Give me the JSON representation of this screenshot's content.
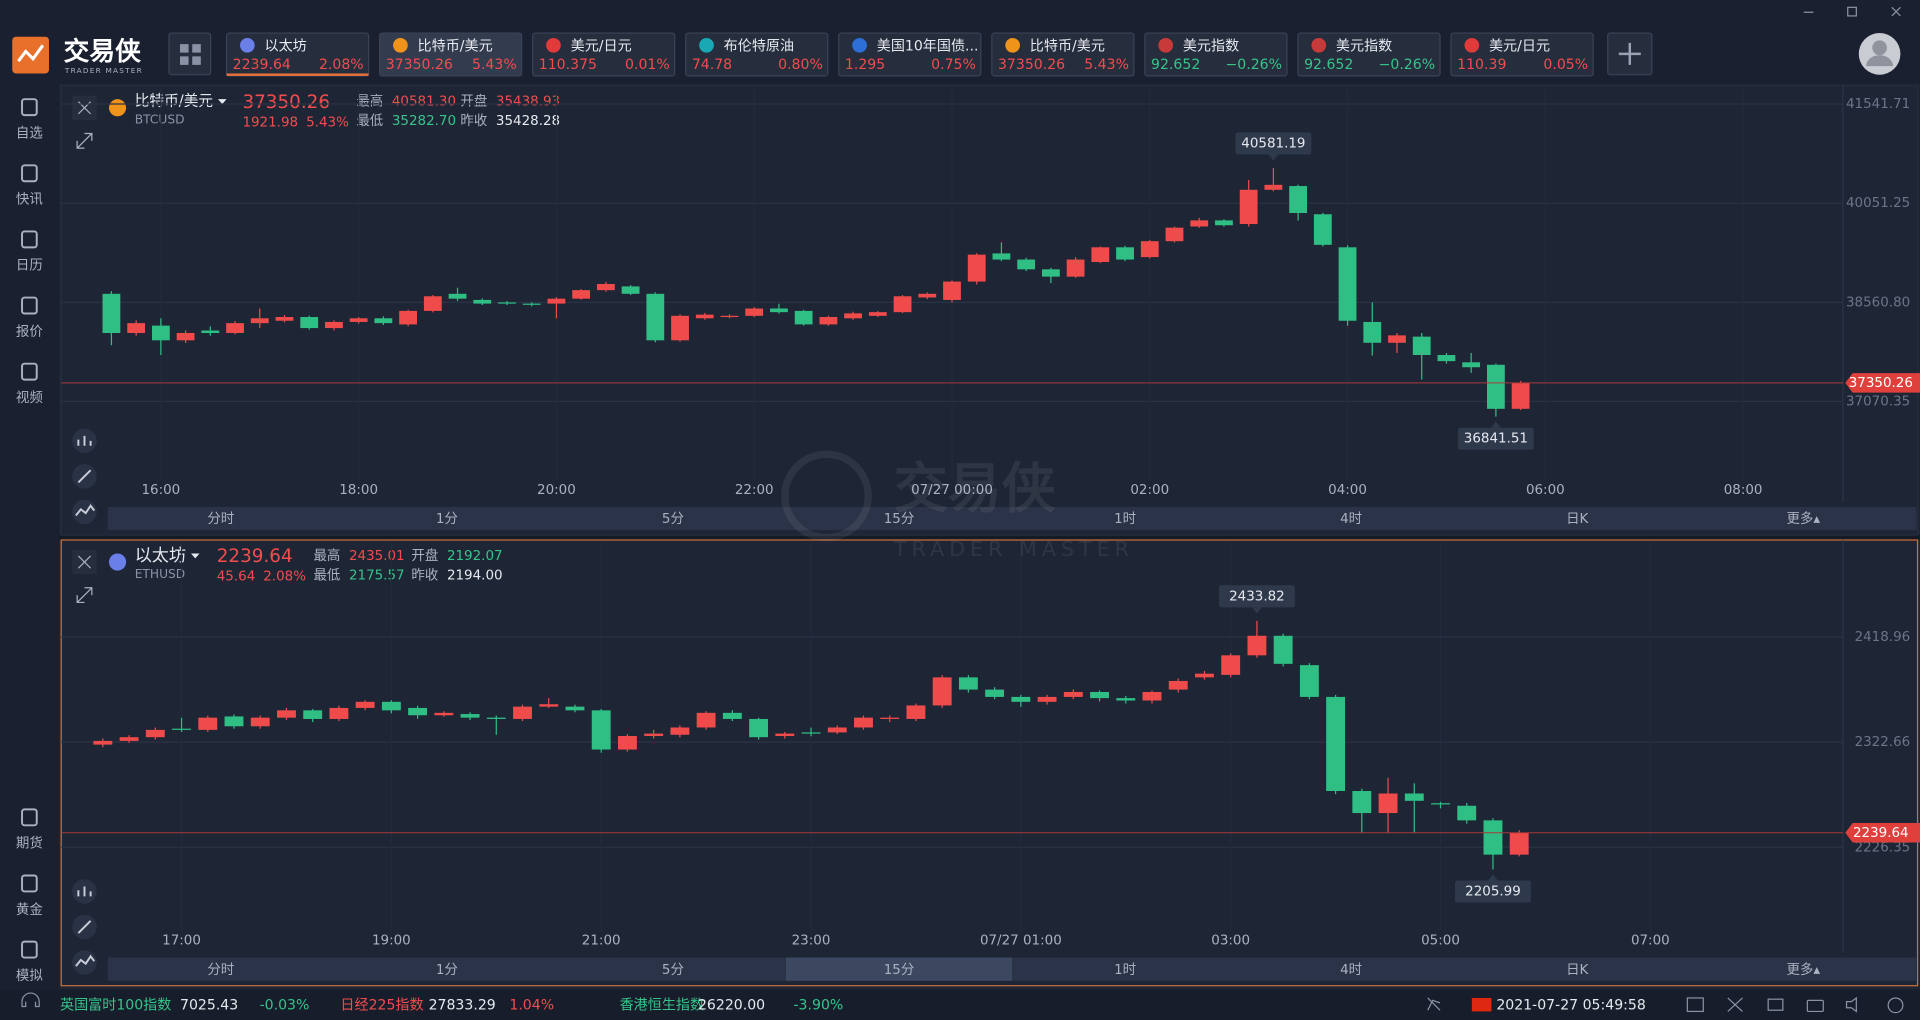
{
  "header": {
    "logo": "交易侠",
    "logo_sub": "TRADER MASTER",
    "active_ticker": 0,
    "tickers": [
      {
        "name": "以太坊",
        "price": "2239.64",
        "change": "2.08%",
        "color": "#f24d4d",
        "icon_color": "#6a7fe8"
      },
      {
        "name": "比特币/美元",
        "price": "37350.26",
        "change": "5.43%",
        "color": "#f24d4d",
        "icon_color": "#f0931a"
      },
      {
        "name": "美元/日元",
        "price": "110.375",
        "change": "0.01%",
        "color": "#f24d4d",
        "icon_color": "#e03a3a"
      },
      {
        "name": "布伦特原油",
        "price": "74.78",
        "change": "0.80%",
        "color": "#f24d4d",
        "icon_color": "#19a9b5"
      },
      {
        "name": "美国10年国债...",
        "price": "1.295",
        "change": "0.75%",
        "color": "#f24d4d",
        "icon_color": "#2d6fd6"
      },
      {
        "name": "比特币/美元",
        "price": "37350.26",
        "change": "5.43%",
        "color": "#f24d4d",
        "icon_color": "#f0931a"
      },
      {
        "name": "美元指数",
        "price": "92.652",
        "change": "−0.26%",
        "color": "#36c48b",
        "icon_color": "#c83a3a"
      },
      {
        "name": "美元指数",
        "price": "92.652",
        "change": "−0.26%",
        "color": "#36c48b",
        "icon_color": "#c83a3a"
      },
      {
        "name": "美元/日元",
        "price": "110.39",
        "change": "0.05%",
        "color": "#f24d4d",
        "icon_color": "#e03a3a"
      }
    ]
  },
  "sidebar": {
    "top": [
      "自选",
      "快讯",
      "日历",
      "报价",
      "视频"
    ],
    "bottom": [
      "期货",
      "黄金",
      "模拟"
    ]
  },
  "watermark": {
    "title": "交易侠",
    "subtitle": "TRADER MASTER"
  },
  "panels": [
    {
      "name": "比特币/美元",
      "code": "BTCUSD",
      "price": "37350.26",
      "change": "1921.98",
      "change_pct": "5.43%",
      "price_color": "#f24d4d",
      "selected": false,
      "stats": [
        {
          "label": "最高",
          "value": "40581.30",
          "color": "#f24d4d"
        },
        {
          "label": "开盘",
          "value": "35438.93",
          "color": "#f24d4d"
        },
        {
          "label": "最低",
          "value": "35282.70",
          "color": "#36c48b"
        },
        {
          "label": "昨收",
          "value": "35428.28",
          "color": "#e6e9ef"
        }
      ],
      "timeframes": [
        "分时",
        "1分",
        "5分",
        "15分",
        "1时",
        "4时",
        "日K",
        "更多▴"
      ],
      "active_timeframe": null,
      "chart": {
        "type": "candlestick",
        "up_color": "#f04b4b",
        "down_color": "#2fbf85",
        "grid": true,
        "ylim": [
          35890,
          41670
        ],
        "yticks": [
          {
            "value": 41541.71,
            "label": "41541.71"
          },
          {
            "value": 40051.25,
            "label": "40051.25"
          },
          {
            "value": 38560.8,
            "label": "38560.80"
          },
          {
            "value": 37070.35,
            "label": "37070.35"
          }
        ],
        "x_labels": [
          "16:00",
          "18:00",
          "20:00",
          "22:00",
          "07/27 00:00",
          "02:00",
          "04:00",
          "06:00",
          "08:00"
        ],
        "last_price_tag": "37350.26",
        "high_marker": "40581.19",
        "low_marker": "36841.51",
        "candles": [
          {
            "o": 38689,
            "h": 38730,
            "l": 37916,
            "c": 38100
          },
          {
            "o": 38100,
            "h": 38290,
            "l": 38060,
            "c": 38248
          },
          {
            "o": 38211,
            "h": 38321,
            "l": 37769,
            "c": 37990
          },
          {
            "o": 37990,
            "h": 38140,
            "l": 37950,
            "c": 38100
          },
          {
            "o": 38137,
            "h": 38200,
            "l": 38060,
            "c": 38100
          },
          {
            "o": 38100,
            "h": 38280,
            "l": 38080,
            "c": 38248
          },
          {
            "o": 38248,
            "h": 38468,
            "l": 38174,
            "c": 38321
          },
          {
            "o": 38284,
            "h": 38370,
            "l": 38260,
            "c": 38340
          },
          {
            "o": 38340,
            "h": 38360,
            "l": 38150,
            "c": 38174
          },
          {
            "o": 38174,
            "h": 38290,
            "l": 38140,
            "c": 38266
          },
          {
            "o": 38266,
            "h": 38340,
            "l": 38240,
            "c": 38321
          },
          {
            "o": 38321,
            "h": 38350,
            "l": 38220,
            "c": 38248
          },
          {
            "o": 38229,
            "h": 38450,
            "l": 38200,
            "c": 38432
          },
          {
            "o": 38432,
            "h": 38670,
            "l": 38410,
            "c": 38652
          },
          {
            "o": 38689,
            "h": 38781,
            "l": 38580,
            "c": 38616
          },
          {
            "o": 38597,
            "h": 38620,
            "l": 38520,
            "c": 38542
          },
          {
            "o": 38560,
            "h": 38580,
            "l": 38520,
            "c": 38542
          },
          {
            "o": 38542,
            "h": 38560,
            "l": 38500,
            "c": 38524
          },
          {
            "o": 38542,
            "h": 38640,
            "l": 38321,
            "c": 38616
          },
          {
            "o": 38616,
            "h": 38760,
            "l": 38600,
            "c": 38744
          },
          {
            "o": 38744,
            "h": 38870,
            "l": 38720,
            "c": 38836
          },
          {
            "o": 38800,
            "h": 38820,
            "l": 38670,
            "c": 38689
          },
          {
            "o": 38689,
            "h": 38710,
            "l": 37960,
            "c": 37990
          },
          {
            "o": 37990,
            "h": 38380,
            "l": 37970,
            "c": 38358
          },
          {
            "o": 38321,
            "h": 38400,
            "l": 38300,
            "c": 38376
          },
          {
            "o": 38340,
            "h": 38380,
            "l": 38320,
            "c": 38358
          },
          {
            "o": 38358,
            "h": 38490,
            "l": 38340,
            "c": 38468
          },
          {
            "o": 38468,
            "h": 38540,
            "l": 38390,
            "c": 38413
          },
          {
            "o": 38432,
            "h": 38450,
            "l": 38210,
            "c": 38229
          },
          {
            "o": 38229,
            "h": 38360,
            "l": 38210,
            "c": 38340
          },
          {
            "o": 38321,
            "h": 38420,
            "l": 38300,
            "c": 38395
          },
          {
            "o": 38358,
            "h": 38430,
            "l": 38340,
            "c": 38413
          },
          {
            "o": 38413,
            "h": 38670,
            "l": 38400,
            "c": 38652
          },
          {
            "o": 38634,
            "h": 38710,
            "l": 38610,
            "c": 38689
          },
          {
            "o": 38597,
            "h": 38890,
            "l": 38560,
            "c": 38873
          },
          {
            "o": 38873,
            "h": 39300,
            "l": 38830,
            "c": 39278
          },
          {
            "o": 39296,
            "h": 39462,
            "l": 39180,
            "c": 39204
          },
          {
            "o": 39204,
            "h": 39230,
            "l": 39030,
            "c": 39057
          },
          {
            "o": 39057,
            "h": 39080,
            "l": 38850,
            "c": 38947
          },
          {
            "o": 38947,
            "h": 39240,
            "l": 38930,
            "c": 39204
          },
          {
            "o": 39167,
            "h": 39400,
            "l": 39150,
            "c": 39388
          },
          {
            "o": 39388,
            "h": 39410,
            "l": 39180,
            "c": 39204
          },
          {
            "o": 39241,
            "h": 39500,
            "l": 39220,
            "c": 39480
          },
          {
            "o": 39480,
            "h": 39700,
            "l": 39460,
            "c": 39683
          },
          {
            "o": 39701,
            "h": 39830,
            "l": 39680,
            "c": 39793
          },
          {
            "o": 39793,
            "h": 39810,
            "l": 39700,
            "c": 39720
          },
          {
            "o": 39738,
            "h": 40400,
            "l": 39700,
            "c": 40253
          },
          {
            "o": 40253,
            "h": 40581.19,
            "l": 40230,
            "c": 40327
          },
          {
            "o": 40309,
            "h": 40330,
            "l": 39790,
            "c": 39904
          },
          {
            "o": 39885,
            "h": 39905,
            "l": 39400,
            "c": 39425
          },
          {
            "o": 39388,
            "h": 39420,
            "l": 38210,
            "c": 38284
          },
          {
            "o": 38266,
            "h": 38560,
            "l": 37760,
            "c": 37953
          },
          {
            "o": 37953,
            "h": 38100,
            "l": 37800,
            "c": 38064
          },
          {
            "o": 38045,
            "h": 38100,
            "l": 37400,
            "c": 37769
          },
          {
            "o": 37769,
            "h": 37800,
            "l": 37640,
            "c": 37677
          },
          {
            "o": 37659,
            "h": 37800,
            "l": 37500,
            "c": 37585
          },
          {
            "o": 37622,
            "h": 37640,
            "l": 36841.51,
            "c": 36960
          },
          {
            "o": 36960,
            "h": 37380,
            "l": 36940,
            "c": 37350.26
          }
        ]
      }
    },
    {
      "name": "以太坊",
      "code": "ETHUSD",
      "price": "2239.64",
      "change": "45.64",
      "change_pct": "2.08%",
      "price_color": "#f24d4d",
      "selected": true,
      "stats": [
        {
          "label": "最高",
          "value": "2435.01",
          "color": "#f24d4d"
        },
        {
          "label": "开盘",
          "value": "2192.07",
          "color": "#36c48b"
        },
        {
          "label": "最低",
          "value": "2175.57",
          "color": "#36c48b"
        },
        {
          "label": "昨收",
          "value": "2194.00",
          "color": "#e6e9ef"
        }
      ],
      "timeframes": [
        "分时",
        "1分",
        "5分",
        "15分",
        "1时",
        "4时",
        "日K",
        "更多▴"
      ],
      "active_timeframe": 3,
      "chart": {
        "type": "candlestick",
        "up_color": "#f04b4b",
        "down_color": "#2fbf85",
        "grid": true,
        "ylim": [
          2150,
          2500
        ],
        "yticks": [
          2418.96,
          2322.66,
          2226.35
        ],
        "x_labels": [
          "17:00",
          "19:00",
          "21:00",
          "23:00",
          "07/27 01:00",
          "03:00",
          "05:00",
          "07:00"
        ],
        "last_price_tag": "2239.64",
        "high_marker": "2433.82",
        "low_marker": "2205.99",
        "candles": [
          {
            "o": 2320.4,
            "h": 2326,
            "l": 2318,
            "c": 2323.8
          },
          {
            "o": 2323.8,
            "h": 2329,
            "l": 2322,
            "c": 2327.2
          },
          {
            "o": 2327.2,
            "h": 2336,
            "l": 2325,
            "c": 2333.9
          },
          {
            "o": 2335,
            "h": 2345,
            "l": 2332,
            "c": 2333.9
          },
          {
            "o": 2333.9,
            "h": 2347,
            "l": 2332,
            "c": 2345.1
          },
          {
            "o": 2346.2,
            "h": 2348,
            "l": 2335,
            "c": 2337.2
          },
          {
            "o": 2337.2,
            "h": 2347,
            "l": 2335,
            "c": 2345.1
          },
          {
            "o": 2345.1,
            "h": 2354,
            "l": 2343,
            "c": 2351.8
          },
          {
            "o": 2351.8,
            "h": 2353,
            "l": 2341,
            "c": 2343.9
          },
          {
            "o": 2343.9,
            "h": 2356,
            "l": 2342,
            "c": 2354
          },
          {
            "o": 2354,
            "h": 2361,
            "l": 2352,
            "c": 2359.6
          },
          {
            "o": 2359.6,
            "h": 2361,
            "l": 2349,
            "c": 2351.8
          },
          {
            "o": 2354,
            "h": 2356,
            "l": 2344,
            "c": 2347.3
          },
          {
            "o": 2347.3,
            "h": 2351,
            "l": 2346,
            "c": 2349.5
          },
          {
            "o": 2348.4,
            "h": 2350,
            "l": 2343,
            "c": 2345.1
          },
          {
            "o": 2345.1,
            "h": 2347,
            "l": 2329.4,
            "c": 2343.9
          },
          {
            "o": 2343.9,
            "h": 2357,
            "l": 2342,
            "c": 2355.2
          },
          {
            "o": 2355.2,
            "h": 2363,
            "l": 2354,
            "c": 2357.4
          },
          {
            "o": 2355.2,
            "h": 2357,
            "l": 2350,
            "c": 2351.8
          },
          {
            "o": 2351.8,
            "h": 2353,
            "l": 2313,
            "c": 2315.9
          },
          {
            "o": 2315.9,
            "h": 2330,
            "l": 2314,
            "c": 2328.3
          },
          {
            "o": 2328.3,
            "h": 2334,
            "l": 2326,
            "c": 2330.5
          },
          {
            "o": 2329.4,
            "h": 2338,
            "l": 2327,
            "c": 2336.1
          },
          {
            "o": 2336.1,
            "h": 2351,
            "l": 2334,
            "c": 2349.5
          },
          {
            "o": 2349.5,
            "h": 2352,
            "l": 2342,
            "c": 2343.9
          },
          {
            "o": 2343.9,
            "h": 2345,
            "l": 2325,
            "c": 2327.2
          },
          {
            "o": 2328.3,
            "h": 2332,
            "l": 2326,
            "c": 2330.5
          },
          {
            "o": 2331.6,
            "h": 2336,
            "l": 2328,
            "c": 2330.5
          },
          {
            "o": 2331.6,
            "h": 2338,
            "l": 2330,
            "c": 2336.1
          },
          {
            "o": 2336.1,
            "h": 2347,
            "l": 2334,
            "c": 2345.1
          },
          {
            "o": 2343.9,
            "h": 2347,
            "l": 2341,
            "c": 2345.1
          },
          {
            "o": 2343.9,
            "h": 2358,
            "l": 2342,
            "c": 2356.3
          },
          {
            "o": 2356.3,
            "h": 2384,
            "l": 2354,
            "c": 2382
          },
          {
            "o": 2382,
            "h": 2384,
            "l": 2368,
            "c": 2370.8
          },
          {
            "o": 2370.8,
            "h": 2373,
            "l": 2362,
            "c": 2364.1
          },
          {
            "o": 2364.1,
            "h": 2366,
            "l": 2355,
            "c": 2359.6
          },
          {
            "o": 2359.6,
            "h": 2366,
            "l": 2357,
            "c": 2364.1
          },
          {
            "o": 2364.1,
            "h": 2371,
            "l": 2362,
            "c": 2368.6
          },
          {
            "o": 2368.6,
            "h": 2370,
            "l": 2360,
            "c": 2363
          },
          {
            "o": 2363,
            "h": 2365,
            "l": 2358,
            "c": 2360.8
          },
          {
            "o": 2360.8,
            "h": 2370,
            "l": 2358,
            "c": 2368.6
          },
          {
            "o": 2370.8,
            "h": 2381,
            "l": 2368,
            "c": 2378.7
          },
          {
            "o": 2382,
            "h": 2388,
            "l": 2380,
            "c": 2385.4
          },
          {
            "o": 2384.3,
            "h": 2404,
            "l": 2382,
            "c": 2402.2
          },
          {
            "o": 2402.2,
            "h": 2433.82,
            "l": 2400,
            "c": 2420.1
          },
          {
            "o": 2420.1,
            "h": 2422,
            "l": 2392,
            "c": 2394.4
          },
          {
            "o": 2393.2,
            "h": 2395,
            "l": 2362,
            "c": 2364.1
          },
          {
            "o": 2364.1,
            "h": 2366,
            "l": 2275,
            "c": 2277.9
          },
          {
            "o": 2277.9,
            "h": 2280,
            "l": 2240,
            "c": 2257.7
          },
          {
            "o": 2257.7,
            "h": 2290,
            "l": 2240,
            "c": 2275.6
          },
          {
            "o": 2275.6,
            "h": 2285,
            "l": 2240,
            "c": 2268.9
          },
          {
            "o": 2266.7,
            "h": 2268,
            "l": 2262,
            "c": 2265.6
          },
          {
            "o": 2264.4,
            "h": 2267,
            "l": 2248,
            "c": 2251
          },
          {
            "o": 2251,
            "h": 2253,
            "l": 2205.99,
            "c": 2219.6
          },
          {
            "o": 2219.6,
            "h": 2242,
            "l": 2218,
            "c": 2239.64
          }
        ]
      }
    }
  ],
  "footer": {
    "indices": [
      {
        "name": "英国富时100指数",
        "value": "7025.43",
        "change": "-0.03%",
        "color": "#36c48b"
      },
      {
        "name": "日经225指数",
        "value": "27833.29",
        "change": "1.04%",
        "color": "#f24d4d"
      },
      {
        "name": "香港恒生指数",
        "value": "26220.00",
        "change": "-3.90%",
        "color": "#36c48b"
      }
    ],
    "datetime": "2021-07-27 05:49:58"
  }
}
